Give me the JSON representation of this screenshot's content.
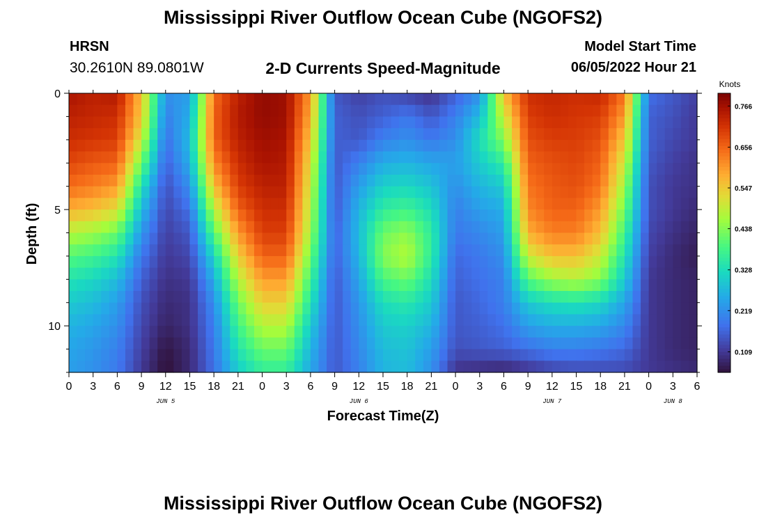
{
  "title": "Mississippi River Outflow Ocean Cube (NGOFS2)",
  "footer_title": "Mississippi River Outflow Ocean Cube (NGOFS2)",
  "station": {
    "id": "HRSN",
    "coords": "30.2610N  89.0801W"
  },
  "model_start": {
    "label": "Model Start Time",
    "value": "06/05/2022 Hour 21"
  },
  "chart_data": {
    "type": "heatmap",
    "title": "2-D Currents Speed-Magnitude",
    "xlabel": "Forecast Time(Z)",
    "ylabel": "Depth (ft)",
    "colorbar_label": "Knots",
    "x_hours": [
      0,
      78
    ],
    "xlim": [
      0,
      78
    ],
    "ylim": [
      0,
      12
    ],
    "y_ticks": [
      0,
      5,
      10
    ],
    "y_tick_labels": [
      "0",
      "5",
      "10"
    ],
    "x_tick_labels": [
      "0",
      "3",
      "6",
      "9",
      "12",
      "15",
      "18",
      "21",
      "0",
      "3",
      "6",
      "9",
      "12",
      "15",
      "18",
      "21",
      "0",
      "3",
      "6",
      "9",
      "12",
      "15",
      "18",
      "21",
      "0",
      "3",
      "6"
    ],
    "date_labels": [
      {
        "label": "JUN 5",
        "hour": 12
      },
      {
        "label": "JUN 6",
        "hour": 36
      },
      {
        "label": "JUN 7",
        "hour": 60
      },
      {
        "label": "JUN 8",
        "hour": 75
      }
    ],
    "colorbar": {
      "min": 0.054,
      "max": 0.8,
      "ticks": [
        0.109,
        0.219,
        0.328,
        0.438,
        0.547,
        0.656,
        0.766
      ],
      "tick_labels": [
        "0.109",
        "0.219",
        "0.328",
        "0.438",
        "0.547",
        "0.656",
        "0.766"
      ],
      "colormap": "turbo"
    },
    "depths_ft": [
      0,
      1,
      2,
      3,
      4,
      5,
      6,
      7,
      8,
      9,
      10,
      11,
      12
    ],
    "speed_knots_by_depth": [
      [
        0.76,
        0.74,
        0.75,
        0.56,
        0.22,
        0.24,
        0.65,
        0.74,
        0.78,
        0.77,
        0.6,
        0.15,
        0.12,
        0.14,
        0.12,
        0.1,
        0.16,
        0.22,
        0.56,
        0.72,
        0.73,
        0.72,
        0.73,
        0.64,
        0.18,
        0.15,
        0.12
      ],
      [
        0.74,
        0.73,
        0.72,
        0.55,
        0.2,
        0.26,
        0.66,
        0.75,
        0.78,
        0.77,
        0.58,
        0.16,
        0.14,
        0.16,
        0.19,
        0.15,
        0.2,
        0.28,
        0.5,
        0.7,
        0.72,
        0.71,
        0.7,
        0.6,
        0.16,
        0.14,
        0.11
      ],
      [
        0.72,
        0.71,
        0.7,
        0.5,
        0.18,
        0.28,
        0.66,
        0.74,
        0.77,
        0.76,
        0.55,
        0.16,
        0.15,
        0.2,
        0.22,
        0.19,
        0.22,
        0.33,
        0.44,
        0.68,
        0.7,
        0.7,
        0.68,
        0.55,
        0.16,
        0.13,
        0.11
      ],
      [
        0.69,
        0.67,
        0.66,
        0.42,
        0.16,
        0.26,
        0.62,
        0.72,
        0.76,
        0.75,
        0.52,
        0.15,
        0.2,
        0.26,
        0.27,
        0.25,
        0.24,
        0.3,
        0.36,
        0.66,
        0.68,
        0.69,
        0.66,
        0.5,
        0.15,
        0.12,
        0.1
      ],
      [
        0.65,
        0.63,
        0.6,
        0.34,
        0.14,
        0.22,
        0.56,
        0.7,
        0.74,
        0.74,
        0.5,
        0.15,
        0.24,
        0.31,
        0.32,
        0.29,
        0.22,
        0.27,
        0.3,
        0.64,
        0.67,
        0.68,
        0.64,
        0.46,
        0.14,
        0.11,
        0.1
      ],
      [
        0.58,
        0.56,
        0.52,
        0.28,
        0.13,
        0.18,
        0.48,
        0.66,
        0.72,
        0.72,
        0.48,
        0.15,
        0.27,
        0.36,
        0.38,
        0.33,
        0.2,
        0.24,
        0.26,
        0.62,
        0.66,
        0.66,
        0.6,
        0.42,
        0.14,
        0.11,
        0.09
      ],
      [
        0.48,
        0.46,
        0.42,
        0.23,
        0.12,
        0.15,
        0.4,
        0.6,
        0.7,
        0.7,
        0.46,
        0.16,
        0.28,
        0.42,
        0.45,
        0.36,
        0.19,
        0.21,
        0.24,
        0.58,
        0.63,
        0.63,
        0.56,
        0.38,
        0.13,
        0.1,
        0.08
      ],
      [
        0.4,
        0.38,
        0.34,
        0.19,
        0.11,
        0.13,
        0.32,
        0.54,
        0.66,
        0.66,
        0.42,
        0.16,
        0.27,
        0.44,
        0.48,
        0.36,
        0.17,
        0.19,
        0.22,
        0.5,
        0.56,
        0.56,
        0.5,
        0.34,
        0.12,
        0.09,
        0.07
      ],
      [
        0.34,
        0.32,
        0.28,
        0.16,
        0.1,
        0.11,
        0.26,
        0.48,
        0.6,
        0.6,
        0.38,
        0.15,
        0.25,
        0.39,
        0.42,
        0.33,
        0.16,
        0.18,
        0.2,
        0.4,
        0.46,
        0.48,
        0.44,
        0.3,
        0.11,
        0.09,
        0.08
      ],
      [
        0.3,
        0.28,
        0.24,
        0.14,
        0.09,
        0.1,
        0.22,
        0.42,
        0.54,
        0.54,
        0.34,
        0.15,
        0.23,
        0.33,
        0.35,
        0.3,
        0.15,
        0.17,
        0.2,
        0.3,
        0.33,
        0.34,
        0.32,
        0.25,
        0.11,
        0.09,
        0.08
      ],
      [
        0.27,
        0.25,
        0.22,
        0.13,
        0.08,
        0.1,
        0.2,
        0.38,
        0.48,
        0.48,
        0.3,
        0.15,
        0.22,
        0.3,
        0.31,
        0.27,
        0.15,
        0.16,
        0.18,
        0.24,
        0.26,
        0.26,
        0.25,
        0.21,
        0.11,
        0.09,
        0.08
      ],
      [
        0.25,
        0.23,
        0.2,
        0.12,
        0.06,
        0.09,
        0.19,
        0.34,
        0.42,
        0.42,
        0.27,
        0.15,
        0.21,
        0.28,
        0.29,
        0.24,
        0.14,
        0.15,
        0.16,
        0.18,
        0.2,
        0.2,
        0.19,
        0.17,
        0.11,
        0.09,
        0.08
      ],
      [
        0.24,
        0.22,
        0.19,
        0.11,
        0.05,
        0.09,
        0.18,
        0.3,
        0.36,
        0.36,
        0.25,
        0.15,
        0.2,
        0.27,
        0.28,
        0.22,
        0.1,
        0.09,
        0.08,
        0.1,
        0.12,
        0.13,
        0.13,
        0.13,
        0.11,
        0.1,
        0.09
      ]
    ]
  }
}
